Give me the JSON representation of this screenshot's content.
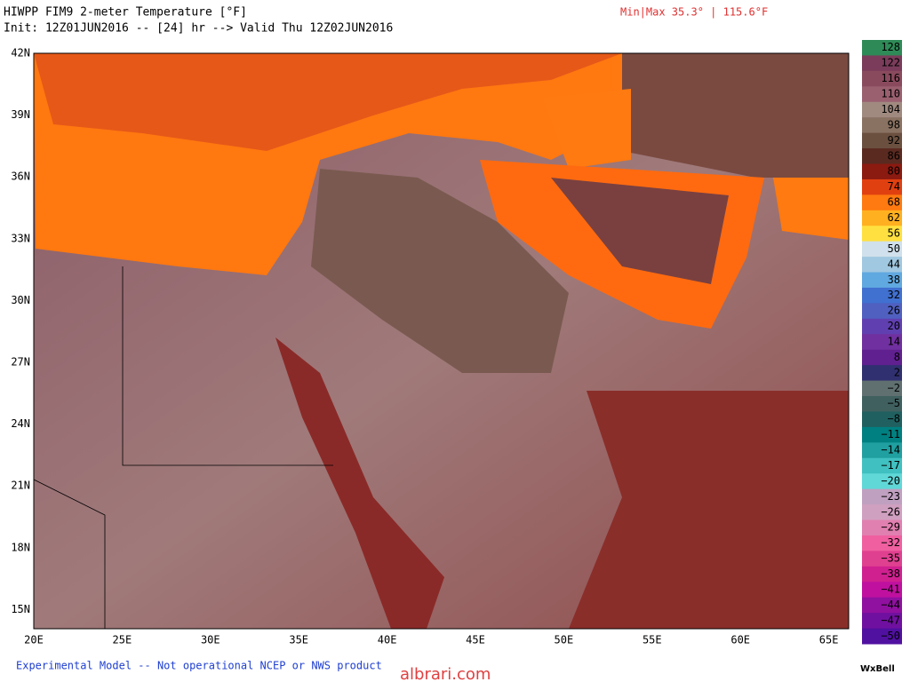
{
  "header": {
    "title": "HIWPP FIM9 2-meter Temperature [°F]",
    "subtitle": "Init: 12Z01JUN2016 -- [24] hr --> Valid Thu 12Z02JUN2016",
    "minmax": "Min|Max 35.3° | 115.6°F"
  },
  "map": {
    "lat_labels": [
      "42N",
      "39N",
      "36N",
      "33N",
      "30N",
      "27N",
      "24N",
      "21N",
      "18N",
      "15N"
    ],
    "lon_labels": [
      "20E",
      "25E",
      "30E",
      "35E",
      "40E",
      "45E",
      "50E",
      "55E",
      "60E",
      "65E"
    ]
  },
  "colorbar": {
    "labels": [
      "128",
      "122",
      "116",
      "110",
      "104",
      "98",
      "92",
      "86",
      "80",
      "74",
      "68",
      "62",
      "56",
      "50",
      "44",
      "38",
      "32",
      "26",
      "20",
      "14",
      "8",
      "2",
      "−2",
      "−5",
      "−8",
      "−11",
      "−14",
      "−17",
      "−20",
      "−23",
      "−26",
      "−29",
      "−32",
      "−35",
      "−38",
      "−41",
      "−44",
      "−47",
      "−50"
    ]
  },
  "footer": {
    "note": "Experimental Model -- Not operational NCEP or NWS product",
    "brand": "WxBell",
    "watermark": "albrari.com"
  }
}
